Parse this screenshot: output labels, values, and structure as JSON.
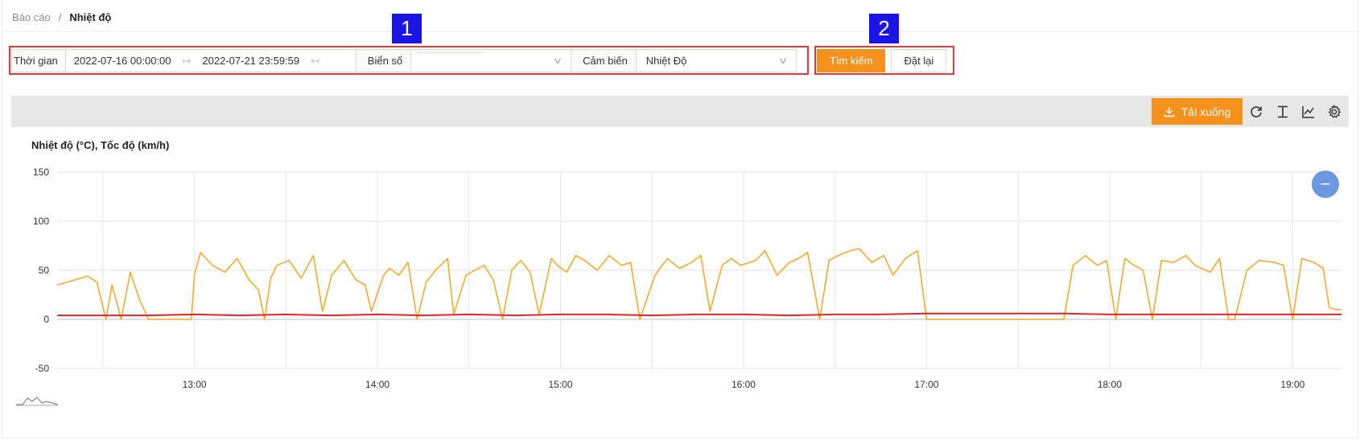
{
  "breadcrumb": {
    "parent": "Báo cáo",
    "separator": "/",
    "current": "Nhiệt độ"
  },
  "filters": {
    "time_label": "Thời gian",
    "start_date": "2022-07-16 00:00:00",
    "end_date": "2022-07-21 23:59:59",
    "plate_label": "Biển số",
    "plate_value": "",
    "sensor_label": "Cảm biến",
    "sensor_value": "Nhiệt Độ"
  },
  "actions": {
    "search_label": "Tìm kiếm",
    "reset_label": "Đặt lại"
  },
  "annotations": [
    {
      "label": "1"
    },
    {
      "label": "2"
    }
  ],
  "toolbar": {
    "download_label": "Tải xuống",
    "icons": [
      "refresh-icon",
      "text-format-icon",
      "line-chart-icon",
      "settings-icon"
    ]
  },
  "colors": {
    "accent": "#f5921e",
    "temperature": "#e8232a",
    "speed": "#f5a623",
    "annotation_box": "#e8383d",
    "annotation_badge": "#1a14e6",
    "zoom_button": "#6b98e0"
  },
  "chart_data": {
    "type": "line",
    "title": "Nhiệt độ (°C), Tốc độ (km/h)",
    "xlabel": "",
    "ylabel": "",
    "ylim": [
      -50,
      150
    ],
    "y_ticks": [
      150,
      100,
      50,
      0,
      -50
    ],
    "x_ticks": [
      "13:00",
      "14:00",
      "15:00",
      "16:00",
      "17:00",
      "18:00",
      "19:00"
    ],
    "xlim": [
      "12:15",
      "19:16"
    ],
    "grid": true,
    "series": [
      {
        "color": "#f5a623",
        "x": [
          "12:15",
          "12:25",
          "12:28",
          "12:31",
          "12:33",
          "12:36",
          "12:39",
          "12:42",
          "12:45",
          "12:48",
          "12:50",
          "12:55",
          "12:59",
          "13:00",
          "13:02",
          "13:06",
          "13:10",
          "13:14",
          "13:18",
          "13:21",
          "13:23",
          "13:25",
          "13:27",
          "13:31",
          "13:35",
          "13:39",
          "13:42",
          "13:45",
          "13:49",
          "13:53",
          "13:56",
          "13:58",
          "14:02",
          "14:04",
          "14:07",
          "14:10",
          "14:13",
          "14:16",
          "14:19",
          "14:23",
          "14:25",
          "14:29",
          "14:32",
          "14:35",
          "14:38",
          "14:41",
          "14:44",
          "14:47",
          "14:50",
          "14:53",
          "14:57",
          "14:59",
          "15:02",
          "15:05",
          "15:08",
          "15:12",
          "15:16",
          "15:20",
          "15:23",
          "15:26",
          "15:31",
          "15:35",
          "15:39",
          "15:43",
          "15:46",
          "15:49",
          "15:53",
          "15:56",
          "15:59",
          "16:04",
          "16:07",
          "16:11",
          "16:15",
          "16:18",
          "16:21",
          "16:25",
          "16:28",
          "16:31",
          "16:35",
          "16:38",
          "16:42",
          "16:46",
          "16:49",
          "16:53",
          "16:57",
          "17:00",
          "17:02",
          "17:05",
          "17:08",
          "17:45",
          "17:48",
          "17:52",
          "17:56",
          "17:59",
          "18:02",
          "18:05",
          "18:08",
          "18:11",
          "18:14",
          "18:17",
          "18:21",
          "18:25",
          "18:28",
          "18:33",
          "18:36",
          "18:39",
          "18:41",
          "18:45",
          "18:49",
          "18:54",
          "18:57",
          "19:00",
          "19:03",
          "19:07",
          "19:10",
          "19:12",
          "19:14",
          "19:16"
        ],
        "y": [
          35,
          44,
          38,
          0,
          35,
          0,
          48,
          20,
          0,
          0,
          0,
          0,
          0,
          45,
          68,
          55,
          48,
          62,
          40,
          30,
          0,
          42,
          55,
          60,
          42,
          65,
          8,
          45,
          60,
          40,
          35,
          8,
          45,
          52,
          45,
          58,
          0,
          38,
          50,
          62,
          5,
          45,
          50,
          55,
          40,
          0,
          50,
          60,
          48,
          5,
          62,
          55,
          48,
          65,
          60,
          50,
          65,
          55,
          58,
          0,
          45,
          62,
          52,
          58,
          65,
          8,
          55,
          62,
          55,
          60,
          70,
          45,
          58,
          62,
          68,
          0,
          60,
          65,
          70,
          72,
          58,
          65,
          45,
          62,
          70,
          0,
          0,
          0,
          0,
          0,
          55,
          65,
          55,
          60,
          0,
          62,
          55,
          50,
          0,
          60,
          58,
          65,
          55,
          48,
          62,
          0,
          0,
          50,
          60,
          58,
          55,
          0,
          62,
          58,
          52,
          12,
          10,
          10
        ]
      },
      {
        "color": "#e8232a",
        "x": [
          "12:15",
          "12:30",
          "12:45",
          "13:00",
          "13:15",
          "13:30",
          "13:45",
          "14:00",
          "14:15",
          "14:30",
          "14:45",
          "15:00",
          "15:15",
          "15:30",
          "15:45",
          "16:00",
          "16:15",
          "16:30",
          "16:45",
          "17:00",
          "17:15",
          "17:30",
          "17:45",
          "18:00",
          "18:15",
          "18:30",
          "18:45",
          "19:00",
          "19:16"
        ],
        "y": [
          4,
          4,
          4,
          5,
          4,
          5,
          4,
          5,
          4,
          5,
          4,
          5,
          5,
          4,
          5,
          5,
          4,
          5,
          5,
          6,
          6,
          6,
          6,
          5,
          5,
          5,
          5,
          5,
          5
        ]
      }
    ]
  }
}
